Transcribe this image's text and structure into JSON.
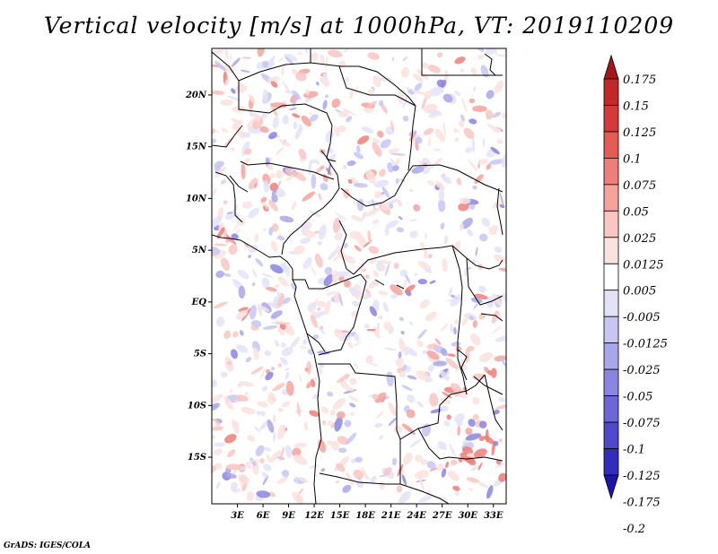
{
  "title": "Vertical velocity [m/s] at 1000hPa, VT: 2019110209",
  "footer": "GrADS: IGES/COLA",
  "map": {
    "lon_range": [
      0,
      34.5
    ],
    "lat_range": [
      -19.5,
      24.5
    ],
    "lat_ticks": [
      "20N",
      "15N",
      "10N",
      "5N",
      "EQ",
      "5S",
      "10S",
      "15S"
    ],
    "lat_tick_values": [
      20,
      15,
      10,
      5,
      0,
      -5,
      -10,
      -15
    ],
    "lon_ticks": [
      "3E",
      "6E",
      "9E",
      "12E",
      "15E",
      "18E",
      "21E",
      "24E",
      "27E",
      "30E",
      "33E"
    ],
    "lon_tick_values": [
      3,
      6,
      9,
      12,
      15,
      18,
      21,
      24,
      27,
      30,
      33
    ]
  },
  "colorbar": {
    "labels": [
      "0.175",
      "0.15",
      "0.125",
      "0.1",
      "0.075",
      "0.05",
      "0.025",
      "0.0125",
      "0.005",
      "-0.005",
      "-0.0125",
      "-0.025",
      "-0.05",
      "-0.075",
      "-0.1",
      "-0.125",
      "-0.175",
      "-0.2"
    ],
    "colors": [
      "#a4161a",
      "#c0282a",
      "#d53a3a",
      "#e45a55",
      "#ee7f78",
      "#f5a39d",
      "#f9c6c1",
      "#fce2df",
      "#ffffff",
      "#e3e3f8",
      "#c7c6f2",
      "#a9a6ea",
      "#8a85e0",
      "#6c66d6",
      "#4e48cb",
      "#332dbd",
      "#1b16a8"
    ]
  }
}
